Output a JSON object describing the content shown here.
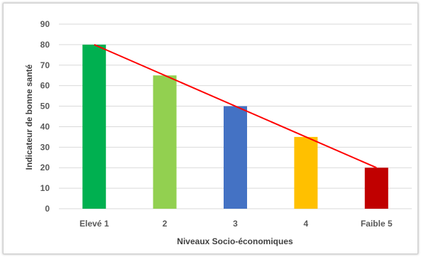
{
  "chart_data": {
    "type": "bar",
    "categories": [
      "Elevé 1",
      "2",
      "3",
      "4",
      "Faible 5"
    ],
    "values": [
      80,
      65,
      50,
      35,
      20
    ],
    "bar_colors": [
      "#00b050",
      "#92d050",
      "#4472c4",
      "#ffc000",
      "#c00000"
    ],
    "trend_line": {
      "from": 80,
      "to": 20,
      "color": "#ff0000"
    },
    "title": "",
    "xlabel": "Niveaux Socio-économiques",
    "ylabel": "Indicateur de bonne santé",
    "ylim": [
      0,
      90
    ],
    "yticks": [
      0,
      10,
      20,
      30,
      40,
      50,
      60,
      70,
      80,
      90
    ],
    "grid": true,
    "gridline_color": "#d9d9d9"
  }
}
